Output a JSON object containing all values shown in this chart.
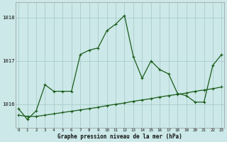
{
  "bg_color": "#cce8e8",
  "grid_color": "#aacccc",
  "line1_color": "#1a5c1a",
  "line2_color": "#1a5c1a",
  "line1_x": [
    0,
    1,
    2,
    3,
    4,
    5,
    6,
    7,
    8,
    9,
    10,
    11,
    12,
    13,
    14,
    15,
    16,
    17,
    18,
    19,
    20,
    21,
    22,
    23
  ],
  "line1_y": [
    1015.9,
    1015.65,
    1015.85,
    1016.45,
    1016.3,
    1016.3,
    1016.3,
    1017.15,
    1017.25,
    1017.3,
    1017.7,
    1017.85,
    1018.05,
    1017.1,
    1016.6,
    1017.0,
    1016.8,
    1016.7,
    1016.25,
    1016.2,
    1016.05,
    1016.05,
    1016.9,
    1017.15
  ],
  "line2_x": [
    0,
    1,
    2,
    3,
    4,
    5,
    6,
    7,
    8,
    9,
    10,
    11,
    12,
    13,
    14,
    15,
    16,
    17,
    18,
    19,
    20,
    21,
    22,
    23
  ],
  "line2_y": [
    1015.75,
    1015.72,
    1015.72,
    1015.75,
    1015.78,
    1015.81,
    1015.84,
    1015.87,
    1015.9,
    1015.93,
    1015.97,
    1016.0,
    1016.03,
    1016.07,
    1016.1,
    1016.13,
    1016.17,
    1016.2,
    1016.23,
    1016.26,
    1016.3,
    1016.33,
    1016.36,
    1016.4
  ],
  "yticks": [
    1016,
    1017,
    1018
  ],
  "ylim": [
    1015.45,
    1018.35
  ],
  "xlim": [
    -0.3,
    23.3
  ],
  "xlabel": "Graphe pression niveau de la mer (hPa)",
  "markersize": 2.0,
  "linewidth": 0.9,
  "xtick_fontsize": 4.2,
  "ytick_fontsize": 5.2,
  "xlabel_fontsize": 5.5
}
